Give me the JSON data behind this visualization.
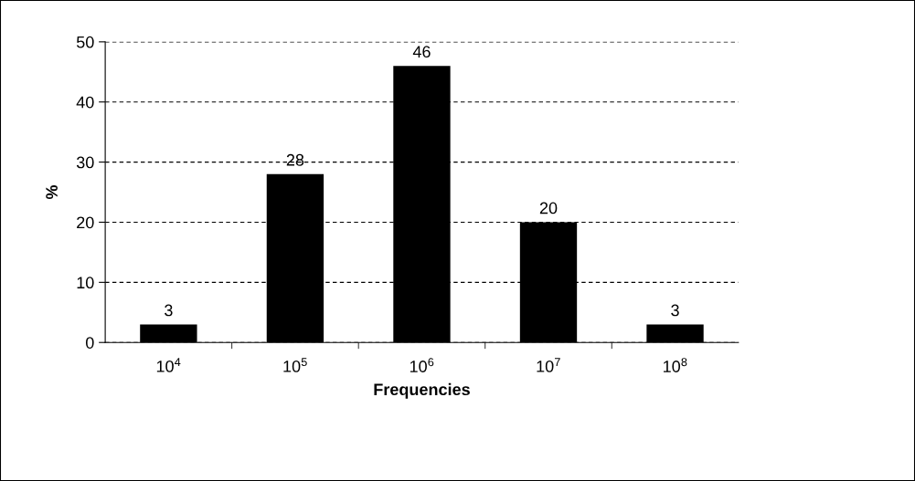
{
  "chart_data": {
    "type": "bar",
    "xlabel": "Frequencies",
    "ylabel": "%",
    "categories": [
      "10$^{4}$",
      "10$^{5}$",
      "10$^{6}$",
      "10$^{7}$",
      "10$^{8}$"
    ],
    "values": [
      3,
      28,
      46,
      20,
      3
    ],
    "color": "#000000",
    "ylim": [
      0,
      50
    ],
    "yticks": [
      0,
      10,
      20,
      30,
      40,
      50
    ],
    "grid": "y",
    "data_labels": true
  }
}
